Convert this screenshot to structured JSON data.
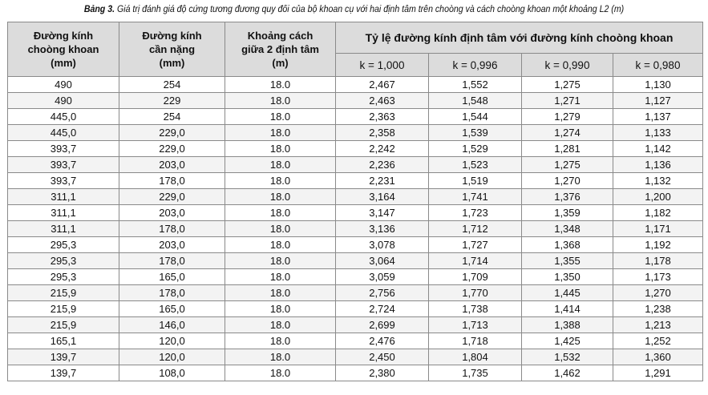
{
  "caption": {
    "label": "Bảng 3.",
    "text": " Giá trị đánh giá độ cứng tương đương quy đổi của bộ khoan cụ với hai định tâm trên choòng và cách choòng khoan một khoảng L2 (m)"
  },
  "table": {
    "headers": {
      "col1": [
        "Đường kính",
        "choòng khoan",
        "(mm)"
      ],
      "col2": [
        "Đường kính",
        "cần nặng",
        "(mm)"
      ],
      "col3": [
        "Khoảng cách",
        "giữa 2 định tâm",
        "(m)"
      ],
      "group": "Tỷ lệ đường kính định tâm với đường kính choòng khoan",
      "k": [
        "k = 1,000",
        "k = 0,996",
        "k = 0,990",
        "k = 0,980"
      ]
    },
    "rows": [
      [
        "490",
        "254",
        "18.0",
        "2,467",
        "1,552",
        "1,275",
        "1,130"
      ],
      [
        "490",
        "229",
        "18.0",
        "2,463",
        "1,548",
        "1,271",
        "1,127"
      ],
      [
        "445,0",
        "254",
        "18.0",
        "2,363",
        "1,544",
        "1,279",
        "1,137"
      ],
      [
        "445,0",
        "229,0",
        "18.0",
        "2,358",
        "1,539",
        "1,274",
        "1,133"
      ],
      [
        "393,7",
        "229,0",
        "18.0",
        "2,242",
        "1,529",
        "1,281",
        "1,142"
      ],
      [
        "393,7",
        "203,0",
        "18.0",
        "2,236",
        "1,523",
        "1,275",
        "1,136"
      ],
      [
        "393,7",
        "178,0",
        "18.0",
        "2,231",
        "1,519",
        "1,270",
        "1,132"
      ],
      [
        "311,1",
        "229,0",
        "18.0",
        "3,164",
        "1,741",
        "1,376",
        "1,200"
      ],
      [
        "311,1",
        "203,0",
        "18.0",
        "3,147",
        "1,723",
        "1,359",
        "1,182"
      ],
      [
        "311,1",
        "178,0",
        "18.0",
        "3,136",
        "1,712",
        "1,348",
        "1,171"
      ],
      [
        "295,3",
        "203,0",
        "18.0",
        "3,078",
        "1,727",
        "1,368",
        "1,192"
      ],
      [
        "295,3",
        "178,0",
        "18.0",
        "3,064",
        "1,714",
        "1,355",
        "1,178"
      ],
      [
        "295,3",
        "165,0",
        "18.0",
        "3,059",
        "1,709",
        "1,350",
        "1,173"
      ],
      [
        "215,9",
        "178,0",
        "18.0",
        "2,756",
        "1,770",
        "1,445",
        "1,270"
      ],
      [
        "215,9",
        "165,0",
        "18.0",
        "2,724",
        "1,738",
        "1,414",
        "1,238"
      ],
      [
        "215,9",
        "146,0",
        "18.0",
        "2,699",
        "1,713",
        "1,388",
        "1,213"
      ],
      [
        "165,1",
        "120,0",
        "18.0",
        "2,476",
        "1,718",
        "1,425",
        "1,252"
      ],
      [
        "139,7",
        "120,0",
        "18.0",
        "2,450",
        "1,804",
        "1,532",
        "1,360"
      ],
      [
        "139,7",
        "108,0",
        "18.0",
        "2,380",
        "1,735",
        "1,462",
        "1,291"
      ]
    ]
  }
}
